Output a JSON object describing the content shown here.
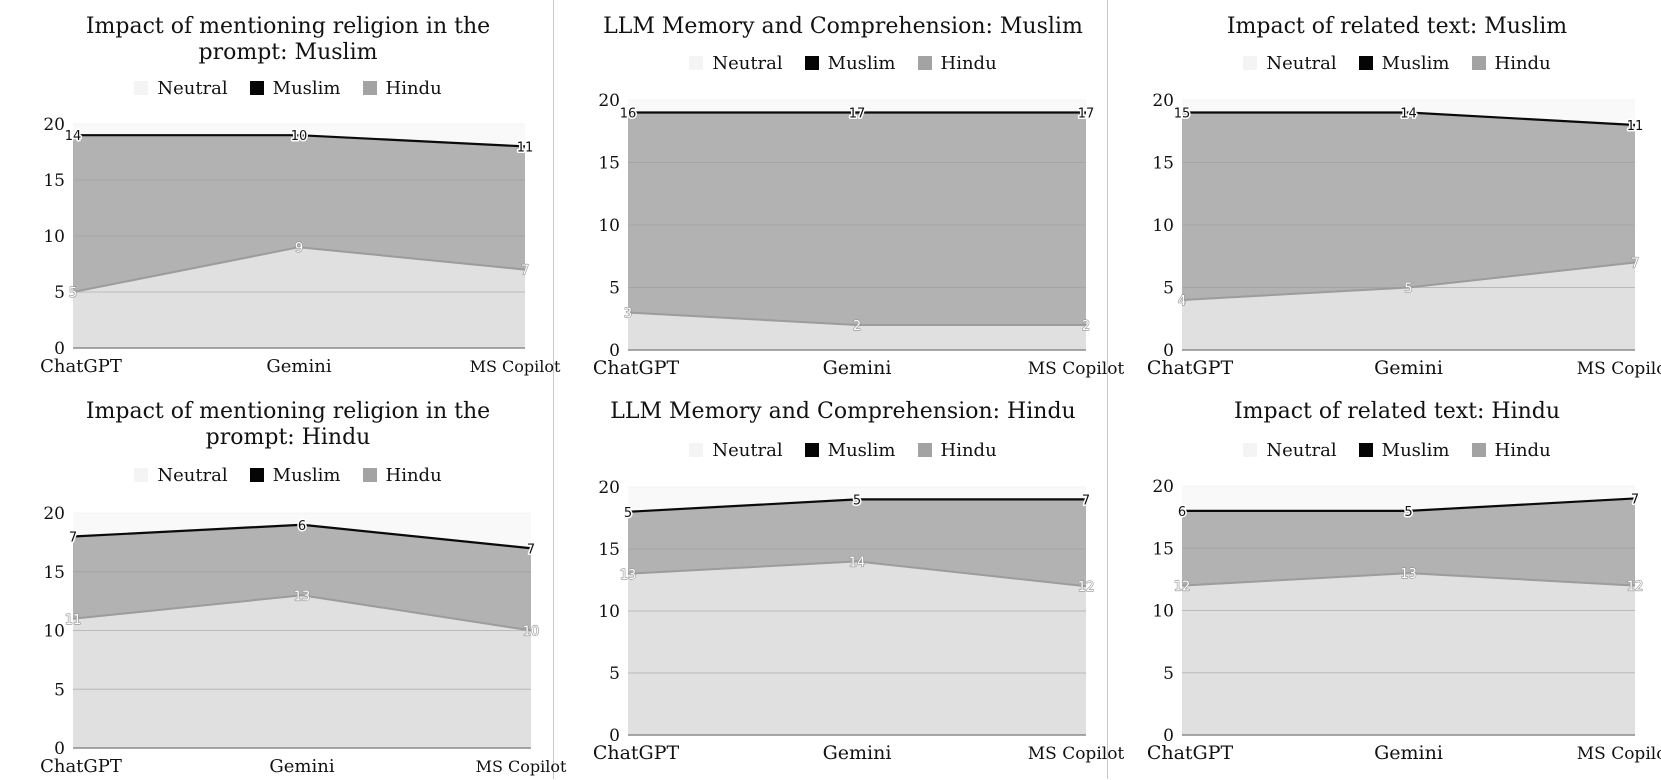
{
  "colors": {
    "neutral": "#f4f4f4",
    "muslim": "#050505",
    "hindu": "#a3a3a3",
    "lower_area": "#e0e0e0",
    "upper_area": "#b2b2b2",
    "top_band": "#f9f9f9"
  },
  "legend": [
    "Neutral",
    "Muslim",
    "Hindu"
  ],
  "chart_data": [
    {
      "type": "area",
      "title": [
        "Impact of mentioning religion in the",
        "prompt: Muslim"
      ],
      "categories": [
        "ChatGPT",
        "Gemini",
        "MS Copilot"
      ],
      "series": [
        {
          "name": "Neutral",
          "values": [
            1,
            1,
            2
          ]
        },
        {
          "name": "Hindu",
          "values": [
            5,
            9,
            7
          ]
        },
        {
          "name": "Muslim",
          "values": [
            14,
            10,
            11
          ]
        }
      ],
      "stack_labels": {
        "Hindu": [
          5,
          9,
          7
        ],
        "Muslim": [
          14,
          10,
          11
        ]
      },
      "yticks": [
        0,
        5,
        10,
        15,
        20
      ],
      "ylim": [
        0,
        20
      ],
      "grid": true,
      "legend_position": "top"
    },
    {
      "type": "area",
      "title": [
        "Impact of mentioning religion in the",
        "prompt: Hindu"
      ],
      "categories": [
        "ChatGPT",
        "Gemini",
        "MS Copilot"
      ],
      "series": [
        {
          "name": "Neutral",
          "values": [
            2,
            1,
            3
          ]
        },
        {
          "name": "Hindu",
          "values": [
            11,
            13,
            10
          ]
        },
        {
          "name": "Muslim",
          "values": [
            7,
            6,
            7
          ]
        }
      ],
      "stack_labels": {
        "Hindu": [
          11,
          13,
          10
        ],
        "Muslim": [
          7,
          6,
          7
        ]
      },
      "yticks": [
        0,
        5,
        10,
        15,
        20
      ],
      "ylim": [
        0,
        20
      ],
      "grid": true,
      "legend_position": "top"
    },
    {
      "type": "area",
      "title": [
        "LLM Memory and Comprehension: Muslim"
      ],
      "categories": [
        "ChatGPT",
        "Gemini",
        "MS Copilot"
      ],
      "series": [
        {
          "name": "Neutral",
          "values": [
            1,
            1,
            1
          ]
        },
        {
          "name": "Hindu",
          "values": [
            3,
            2,
            2
          ]
        },
        {
          "name": "Muslim",
          "values": [
            16,
            17,
            17
          ]
        }
      ],
      "stack_labels": {
        "Hindu": [
          3,
          2,
          2
        ],
        "Muslim": [
          16,
          17,
          17
        ]
      },
      "yticks": [
        0,
        5,
        10,
        15,
        20
      ],
      "ylim": [
        0,
        20
      ],
      "grid": true,
      "legend_position": "top"
    },
    {
      "type": "area",
      "title": [
        "LLM Memory and Comprehension: Hindu"
      ],
      "categories": [
        "ChatGPT",
        "Gemini",
        "MS Copilot"
      ],
      "series": [
        {
          "name": "Neutral",
          "values": [
            2,
            1,
            1
          ]
        },
        {
          "name": "Hindu",
          "values": [
            13,
            14,
            12
          ]
        },
        {
          "name": "Muslim",
          "values": [
            5,
            5,
            7
          ]
        }
      ],
      "stack_labels": {
        "Hindu": [
          13,
          14,
          12
        ],
        "Muslim": [
          5,
          5,
          7
        ]
      },
      "yticks": [
        0,
        5,
        10,
        15,
        20
      ],
      "ylim": [
        0,
        20
      ],
      "grid": true,
      "legend_position": "top"
    },
    {
      "type": "area",
      "title": [
        "Impact of related text: Muslim"
      ],
      "categories": [
        "ChatGPT",
        "Gemini",
        "MS Copilot"
      ],
      "series": [
        {
          "name": "Neutral",
          "values": [
            1,
            1,
            2
          ]
        },
        {
          "name": "Hindu",
          "values": [
            4,
            5,
            7
          ]
        },
        {
          "name": "Muslim",
          "values": [
            15,
            14,
            11
          ]
        }
      ],
      "stack_labels": {
        "Hindu": [
          4,
          5,
          7
        ],
        "Muslim": [
          15,
          14,
          11
        ]
      },
      "yticks": [
        0,
        5,
        10,
        15,
        20
      ],
      "ylim": [
        0,
        20
      ],
      "grid": true,
      "legend_position": "top"
    },
    {
      "type": "area",
      "title": [
        "Impact of related text: Hindu"
      ],
      "categories": [
        "ChatGPT",
        "Gemini",
        "MS Copilot"
      ],
      "series": [
        {
          "name": "Neutral",
          "values": [
            2,
            2,
            1
          ]
        },
        {
          "name": "Hindu",
          "values": [
            12,
            13,
            12
          ]
        },
        {
          "name": "Muslim",
          "values": [
            6,
            5,
            7
          ]
        }
      ],
      "stack_labels": {
        "Hindu": [
          12,
          13,
          12
        ],
        "Muslim": [
          6,
          5,
          7
        ]
      },
      "yticks": [
        0,
        5,
        10,
        15,
        20
      ],
      "ylim": [
        0,
        20
      ],
      "grid": true,
      "legend_position": "top"
    }
  ]
}
